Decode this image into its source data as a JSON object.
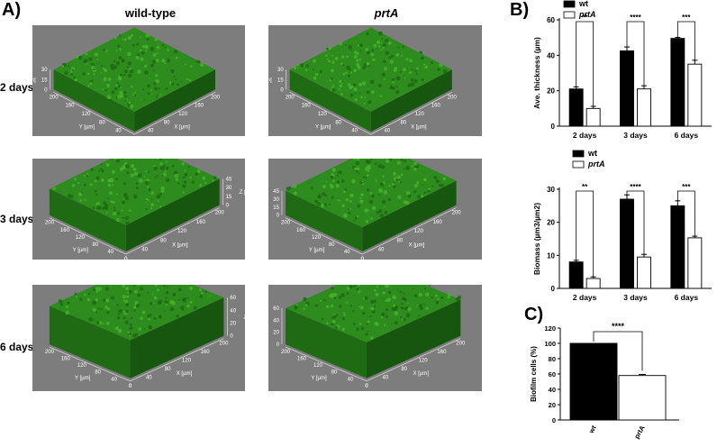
{
  "panels": {
    "a": "A)",
    "b": "B)",
    "c": "C)"
  },
  "columns": [
    "wild-type",
    "prtA"
  ],
  "rows": [
    "2 days",
    "3 days",
    "6 days"
  ],
  "microscopy": {
    "axis_units": {
      "x": "X [µm]",
      "y": "Y [µm]",
      "z": "Z [µm]"
    },
    "xy_ticks": [
      "0",
      "40",
      "80",
      "120",
      "160",
      "200"
    ],
    "xy_ticks_alt": [
      "0",
      "40",
      "80",
      "120",
      "160",
      "200"
    ],
    "z_ticks": {
      "2 days": [
        "0",
        "15",
        "30"
      ],
      "3 days": [
        "0",
        "15",
        "30",
        "45"
      ],
      "6 days": [
        "0",
        "20",
        "40",
        "60"
      ]
    },
    "biofilm_color": "#2e8b1e"
  },
  "chart_data": [
    {
      "type": "bar",
      "title": "",
      "categories": [
        "2 days",
        "3 days",
        "6 days"
      ],
      "series": [
        {
          "name": "wt",
          "values": [
            21,
            42.5,
            49.5
          ],
          "errors": [
            1.2,
            2.2,
            0.6
          ],
          "color": "#000000"
        },
        {
          "name": "prtA",
          "values": [
            10,
            21,
            35
          ],
          "errors": [
            1.2,
            1.8,
            2.2
          ],
          "color": "#ffffff"
        }
      ],
      "significance": [
        "**",
        "****",
        "***"
      ],
      "xlabel": "",
      "ylabel": "Ave. thickness (µm)",
      "ylim": [
        0,
        60
      ],
      "yticks": [
        0,
        20,
        40,
        60
      ],
      "legend": "top-left"
    },
    {
      "type": "bar",
      "title": "",
      "categories": [
        "2 days",
        "3 days",
        "6 days"
      ],
      "series": [
        {
          "name": "wt",
          "values": [
            8,
            27,
            25
          ],
          "errors": [
            0.5,
            1.3,
            1.5
          ],
          "color": "#000000"
        },
        {
          "name": "prtA",
          "values": [
            3,
            9.5,
            15.3
          ],
          "errors": [
            0.5,
            0.8,
            0.5
          ],
          "color": "#ffffff"
        }
      ],
      "significance": [
        "**",
        "****",
        "***"
      ],
      "xlabel": "",
      "ylabel": "Biomass (µm3/µm2)",
      "ylim": [
        0,
        30
      ],
      "yticks": [
        0,
        10,
        20,
        30
      ],
      "legend": "top-left"
    },
    {
      "type": "bar",
      "title": "",
      "categories": [
        "wt",
        "prtA"
      ],
      "series": [
        {
          "name": "Biofilm cells",
          "values": [
            100,
            58
          ],
          "errors": [
            0,
            1.5
          ],
          "colors": [
            "#000000",
            "#ffffff"
          ]
        }
      ],
      "significance": [
        "****"
      ],
      "xlabel": "",
      "ylabel": "Biofilm cells (%)",
      "ylim": [
        0,
        120
      ],
      "yticks": [
        0,
        20,
        40,
        60,
        80,
        100,
        120
      ]
    }
  ]
}
